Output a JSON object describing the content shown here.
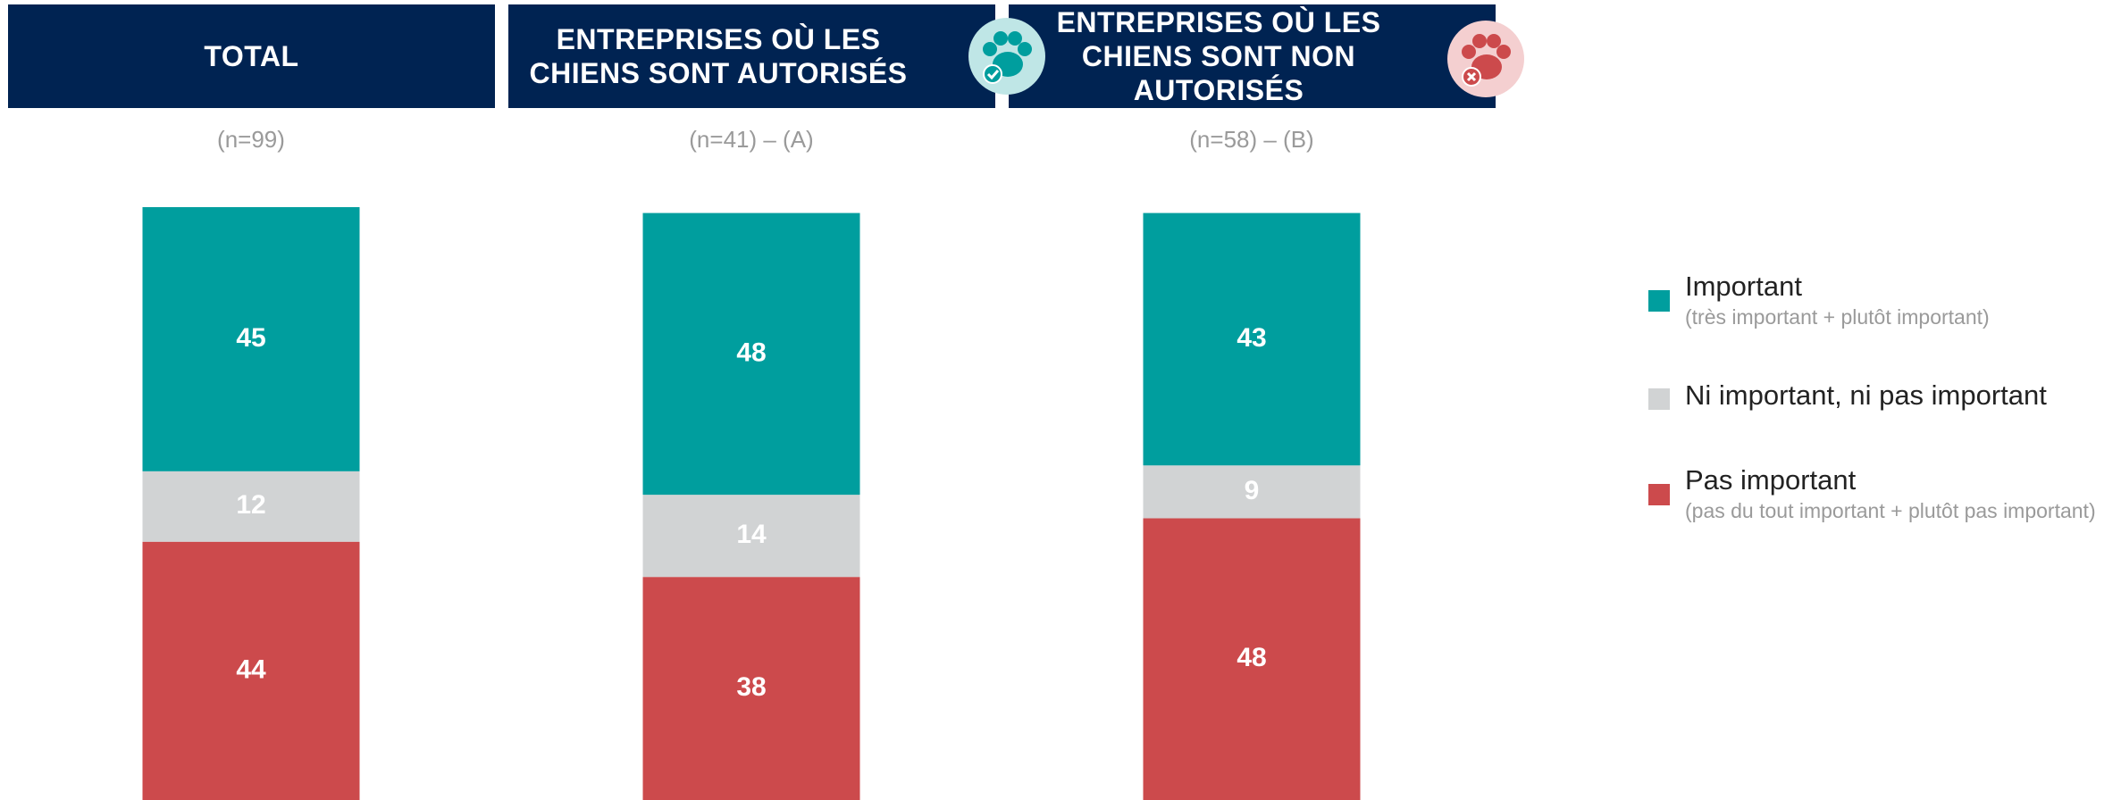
{
  "chart_data": {
    "type": "stacked_bar",
    "categories": [
      "TOTAL",
      "ENTREPRISES OÙ LES CHIENS SONT AUTORISÉS",
      "ENTREPRISES OÙ LES CHIENS SONT NON AUTORISÉS"
    ],
    "sample_labels": [
      "(n=99)",
      "(n=41) – (A)",
      "(n=58) – (B)"
    ],
    "series": [
      {
        "name": "Important",
        "description": "(très important + plutôt important)",
        "color": "#009e9e",
        "values": [
          45,
          48,
          43
        ]
      },
      {
        "name": "Ni important, ni pas important",
        "color": "#d1d3d4",
        "values": [
          12,
          14,
          9
        ]
      },
      {
        "name": "Pas important",
        "description": "(pas du tout important + plutôt pas important)",
        "color": "#cc4a4c",
        "values": [
          44,
          38,
          48
        ]
      }
    ],
    "ylim": [
      0,
      101
    ]
  }
}
